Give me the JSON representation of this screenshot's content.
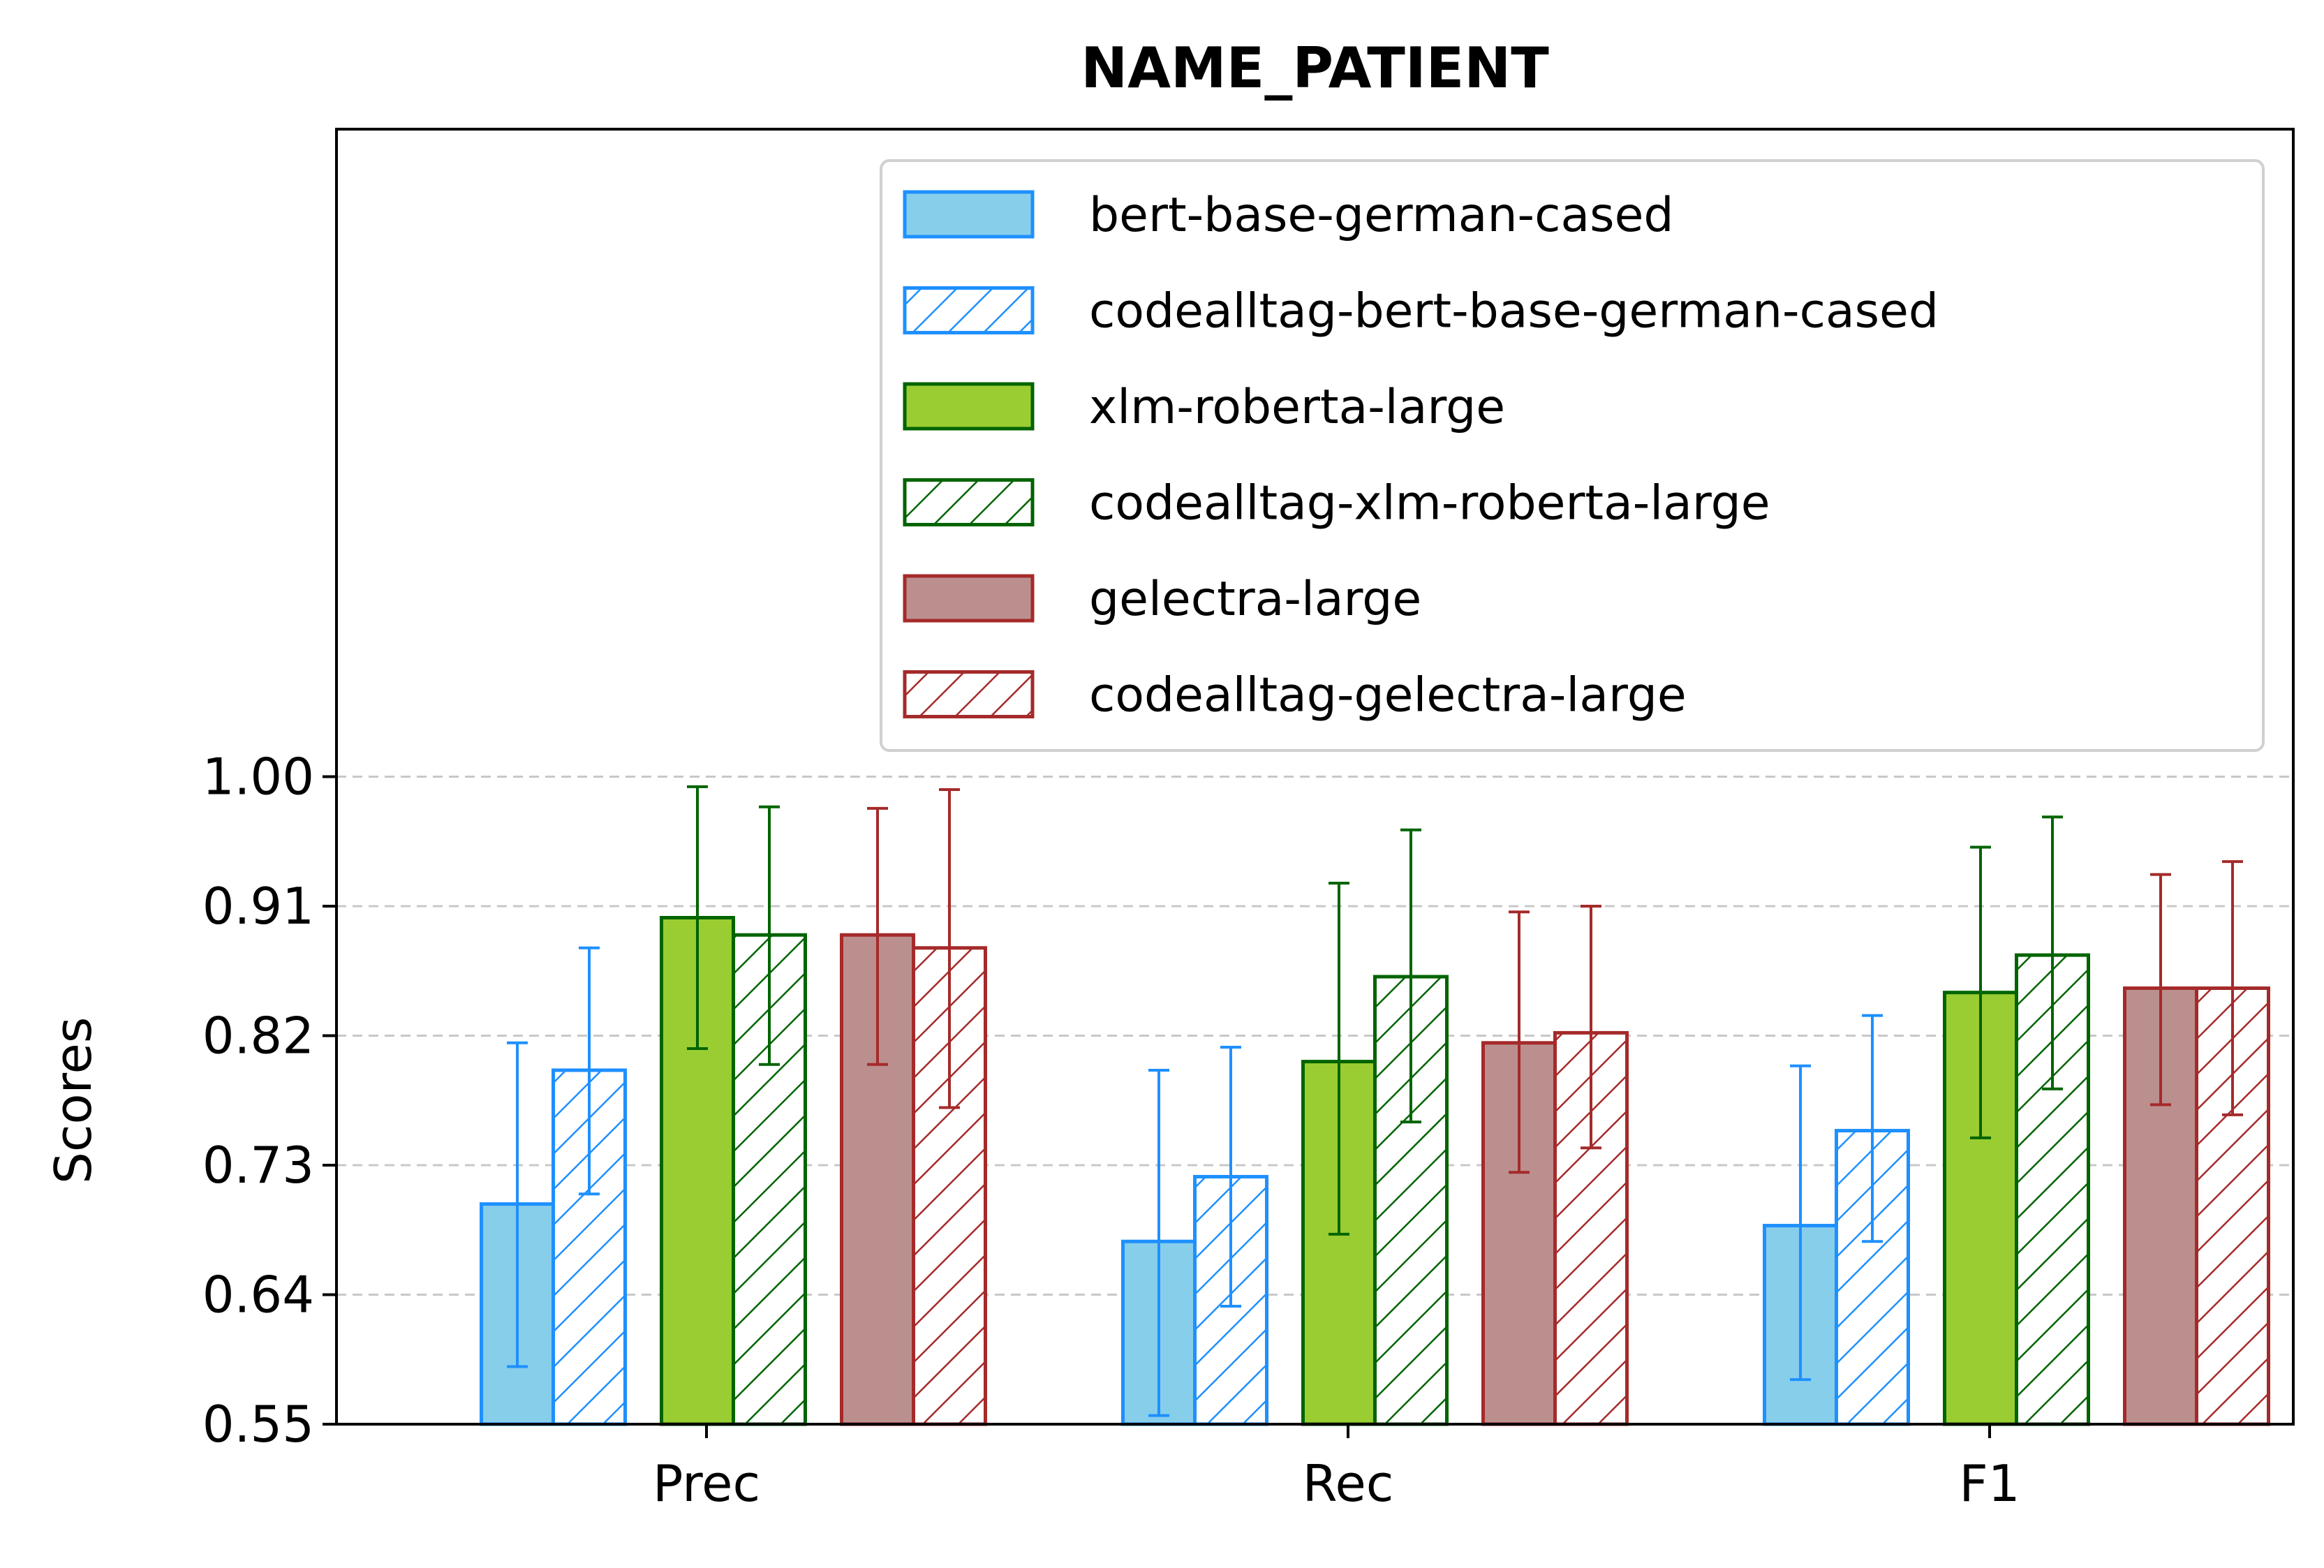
{
  "chart_data": {
    "type": "bar",
    "title": "NAME_PATIENT",
    "xlabel": "",
    "ylabel": "Scores",
    "categories": [
      "Prec",
      "Rec",
      "F1"
    ],
    "ylim": [
      0.55,
      1.45
    ],
    "yticks": [
      "0.55",
      "0.64",
      "0.73",
      "0.82",
      "0.91",
      "1.00"
    ],
    "grid": "horizontal dashed",
    "legend_position": "top-right",
    "series": [
      {
        "name": "bert-base-german-cased",
        "values": [
          0.703,
          0.677,
          0.688
        ],
        "err_low": [
          0.59,
          0.556,
          0.581
        ],
        "err_high": [
          0.815,
          0.796,
          0.799
        ],
        "color": "#87CEEB",
        "edge": "#1E90FF",
        "hatch": false
      },
      {
        "name": "codealltag-bert-base-german-cased",
        "values": [
          0.796,
          0.722,
          0.754
        ],
        "err_low": [
          0.71,
          0.632,
          0.677
        ],
        "err_high": [
          0.881,
          0.812,
          0.834
        ],
        "color": "#ffffff",
        "edge": "#1E90FF",
        "hatch": true
      },
      {
        "name": "xlm-roberta-large",
        "values": [
          0.902,
          0.802,
          0.85
        ],
        "err_low": [
          0.811,
          0.682,
          0.749
        ],
        "err_high": [
          0.993,
          0.926,
          0.951
        ],
        "color": "#9ACD32",
        "edge": "#006400",
        "hatch": false
      },
      {
        "name": "codealltag-xlm-roberta-large",
        "values": [
          0.89,
          0.861,
          0.876
        ],
        "err_low": [
          0.8,
          0.76,
          0.783
        ],
        "err_high": [
          0.979,
          0.963,
          0.972
        ],
        "color": "#ffffff",
        "edge": "#006400",
        "hatch": true
      },
      {
        "name": "gelectra-large",
        "values": [
          0.89,
          0.815,
          0.853
        ],
        "err_low": [
          0.8,
          0.725,
          0.772
        ],
        "err_high": [
          0.978,
          0.906,
          0.932
        ],
        "color": "#BC8F8F",
        "edge": "#A52A2A",
        "hatch": false
      },
      {
        "name": "codealltag-gelectra-large",
        "values": [
          0.881,
          0.822,
          0.853
        ],
        "err_low": [
          0.77,
          0.742,
          0.765
        ],
        "err_high": [
          0.991,
          0.91,
          0.941
        ],
        "color": "#ffffff",
        "edge": "#A52A2A",
        "hatch": true
      }
    ]
  }
}
